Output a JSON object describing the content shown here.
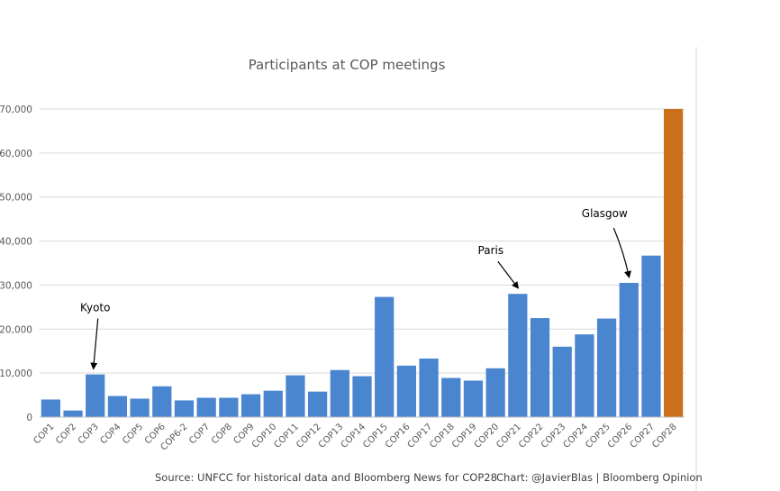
{
  "chart_data": {
    "type": "bar",
    "title": "Participants at COP meetings",
    "xlabel": "",
    "ylabel": "",
    "ylim": [
      0,
      70000
    ],
    "yticks": [
      0,
      10000,
      20000,
      30000,
      40000,
      50000,
      60000,
      70000
    ],
    "ytick_labels": [
      "0",
      "10,000",
      "20,000",
      "30,000",
      "40,000",
      "50,000",
      "60,000",
      "70,000"
    ],
    "grid": true,
    "categories": [
      "COP1",
      "COP2",
      "COP3",
      "COP4",
      "COP5",
      "COP6",
      "COP6-2",
      "COP7",
      "COP8",
      "COP9",
      "COP10",
      "COP11",
      "COP12",
      "COP13",
      "COP14",
      "COP15",
      "COP16",
      "COP17",
      "COP18",
      "COP19",
      "COP20",
      "COP21",
      "COP22",
      "COP23",
      "COP24",
      "COP25",
      "COP26",
      "COP27",
      "COP28"
    ],
    "values": [
      4000,
      1500,
      9700,
      4800,
      4200,
      7000,
      3800,
      4400,
      4400,
      5200,
      6000,
      9500,
      5800,
      10700,
      9300,
      27300,
      11700,
      13300,
      8900,
      8300,
      11100,
      28000,
      22500,
      16000,
      18800,
      22400,
      30500,
      36700,
      70000
    ],
    "colors": {
      "historical": "#4A85D0",
      "highlight": "#CC6F1A",
      "gridline": "#D9D9D9",
      "axis": "#BFBFBF"
    },
    "highlight_categories": [
      "COP28"
    ],
    "annotations": [
      {
        "text": "Kyoto",
        "category": "COP3"
      },
      {
        "text": "Paris",
        "category": "COP21"
      },
      {
        "text": "Glasgow",
        "category": "COP26"
      }
    ]
  },
  "footer": {
    "source": "Source: UNFCC for historical data and Bloomberg News for COP28",
    "credit": "Chart: @JavierBlas | Bloomberg Opinion"
  }
}
